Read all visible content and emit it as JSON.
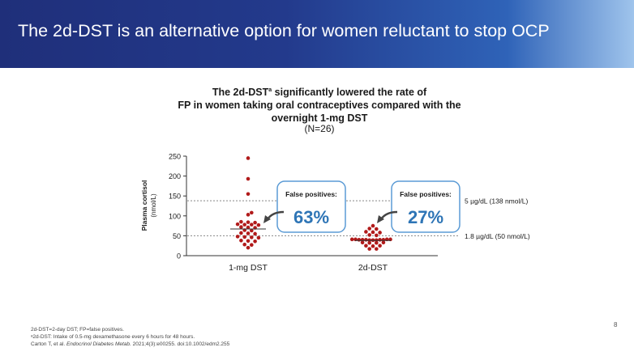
{
  "slide": {
    "title": "The 2d-DST is an alternative option for women reluctant to stop OCP",
    "page_number": "8"
  },
  "chart_data": {
    "type": "scatter",
    "title_line1_pre": "The 2d-DST",
    "title_sup": "a",
    "title_line1_post": " significantly lowered the rate of",
    "title_line2": "FP in women taking oral contraceptives compared with the",
    "title_line3": "overnight 1-mg DST",
    "subtitle": "(N=26)",
    "ylabel_main": "Plasma cortisol",
    "ylabel_unit": "(nmol/L)",
    "ylim": [
      0,
      250
    ],
    "yticks": [
      0,
      50,
      100,
      150,
      200,
      250
    ],
    "categories": [
      "1-mg DST",
      "2d-DST"
    ],
    "series": [
      {
        "name": "1-mg DST",
        "mean": 67,
        "false_positive_label": "False positives:",
        "false_positive_value": "63%",
        "points": [
          {
            "v": 245,
            "o": 0
          },
          {
            "v": 193,
            "o": 0
          },
          {
            "v": 155,
            "o": 0
          },
          {
            "v": 108,
            "o": 1
          },
          {
            "v": 103,
            "o": 0
          },
          {
            "v": 85,
            "o": -2
          },
          {
            "v": 84,
            "o": 0
          },
          {
            "v": 83,
            "o": 2
          },
          {
            "v": 79,
            "o": -3
          },
          {
            "v": 78,
            "o": -1
          },
          {
            "v": 78,
            "o": 1
          },
          {
            "v": 77,
            "o": 3
          },
          {
            "v": 72,
            "o": -2
          },
          {
            "v": 71,
            "o": 0
          },
          {
            "v": 70,
            "o": 2
          },
          {
            "v": 64,
            "o": -1
          },
          {
            "v": 63,
            "o": 1
          },
          {
            "v": 57,
            "o": -2
          },
          {
            "v": 56,
            "o": 0
          },
          {
            "v": 55,
            "o": 2
          },
          {
            "v": 48,
            "o": -3
          },
          {
            "v": 47,
            "o": -1
          },
          {
            "v": 46,
            "o": 1
          },
          {
            "v": 45,
            "o": 3
          },
          {
            "v": 38,
            "o": -2
          },
          {
            "v": 37,
            "o": 0
          },
          {
            "v": 36,
            "o": 2
          },
          {
            "v": 28,
            "o": -1
          },
          {
            "v": 27,
            "o": 1
          },
          {
            "v": 20,
            "o": 0
          }
        ]
      },
      {
        "name": "2d-DST",
        "mean": 38,
        "false_positive_label": "False positives:",
        "false_positive_value": "27%",
        "points": [
          {
            "v": 75,
            "o": 0
          },
          {
            "v": 68,
            "o": -1
          },
          {
            "v": 67,
            "o": 1
          },
          {
            "v": 60,
            "o": -2
          },
          {
            "v": 59,
            "o": 0
          },
          {
            "v": 58,
            "o": 2
          },
          {
            "v": 52,
            "o": -1
          },
          {
            "v": 51,
            "o": 1
          },
          {
            "v": 41,
            "o": -6
          },
          {
            "v": 41,
            "o": -5
          },
          {
            "v": 40,
            "o": -4
          },
          {
            "v": 40,
            "o": -3
          },
          {
            "v": 40,
            "o": -2
          },
          {
            "v": 39,
            "o": -1
          },
          {
            "v": 39,
            "o": 0
          },
          {
            "v": 39,
            "o": 1
          },
          {
            "v": 40,
            "o": 2
          },
          {
            "v": 40,
            "o": 3
          },
          {
            "v": 41,
            "o": 4
          },
          {
            "v": 41,
            "o": 5
          },
          {
            "v": 33,
            "o": -3
          },
          {
            "v": 32,
            "o": -1
          },
          {
            "v": 32,
            "o": 1
          },
          {
            "v": 33,
            "o": 3
          },
          {
            "v": 25,
            "o": -2
          },
          {
            "v": 24,
            "o": 0
          },
          {
            "v": 25,
            "o": 2
          },
          {
            "v": 17,
            "o": -1
          },
          {
            "v": 17,
            "o": 1
          }
        ]
      }
    ],
    "reference_lines": [
      {
        "value": 138,
        "label": "5 µg/dL (138 nmol/L)"
      },
      {
        "value": 50,
        "label": "1.8 µg/dL (50 nmol/L)"
      }
    ],
    "colors": {
      "point": "#b11a1a",
      "box_border": "#5b9bd5",
      "value_text": "#2e75b6",
      "ref_line": "#888888"
    }
  },
  "footnotes": {
    "line1": "2d-DST=2-day DST; FP=false positives.",
    "line2": "ᵃ2d-DST: Intake of 0.5-mg dexamethasone every 6 hours for 48 hours.",
    "line3_pre": "Carton T, et al. ",
    "line3_journal": "Endocrinol Diabetes Metab.",
    "line3_post": " 2021;4(3):e00255. doi:10.1002/edm2.255"
  }
}
